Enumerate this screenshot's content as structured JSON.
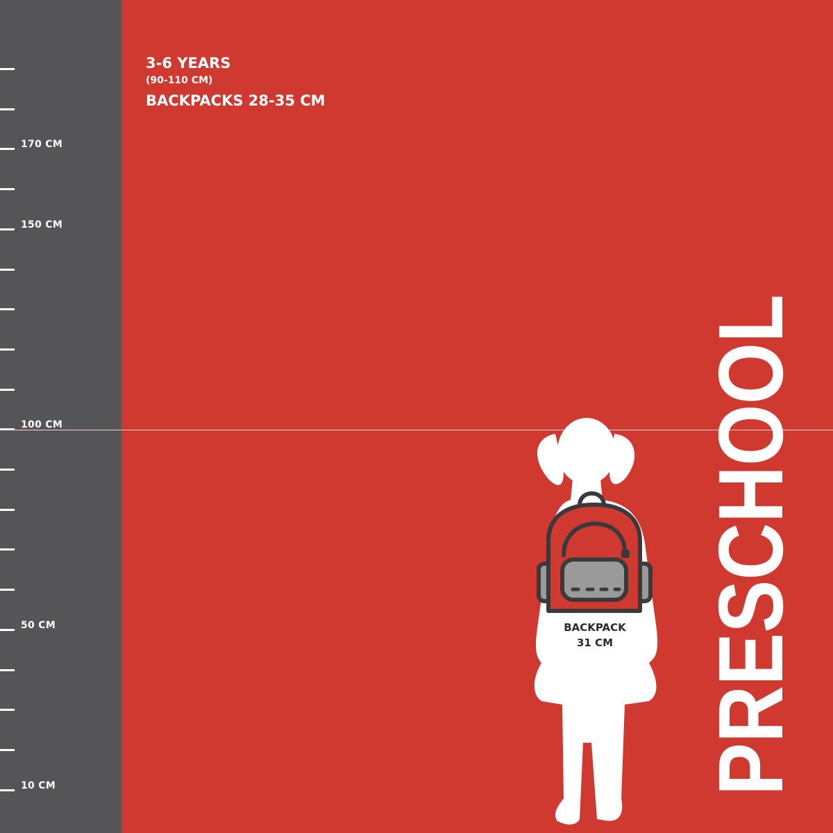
{
  "colors": {
    "background": "#d0392f",
    "ruler": "#555456",
    "silhouette": "#ffffff",
    "backpack_outline": "#3a3a3c",
    "backpack_pocket": "#9a9a9a"
  },
  "ruler": {
    "tick_count": 19,
    "labels": [
      {
        "tick": 2,
        "text": "170 CM"
      },
      {
        "tick": 4,
        "text": "150 CM"
      },
      {
        "tick": 9,
        "text": "100 CM"
      },
      {
        "tick": 14,
        "text": "50 CM"
      },
      {
        "tick": 18,
        "text": "10 CM"
      }
    ]
  },
  "info": {
    "age": "3-6 YEARS",
    "height_range": "(90-110 CM)",
    "backpack_range": "BACKPACKS 28-35 CM"
  },
  "figure": {
    "backpack_label": "BACKPACK",
    "backpack_size": "31 CM",
    "icon": "backpack-icon"
  },
  "category_title": "PRESCHOOL"
}
